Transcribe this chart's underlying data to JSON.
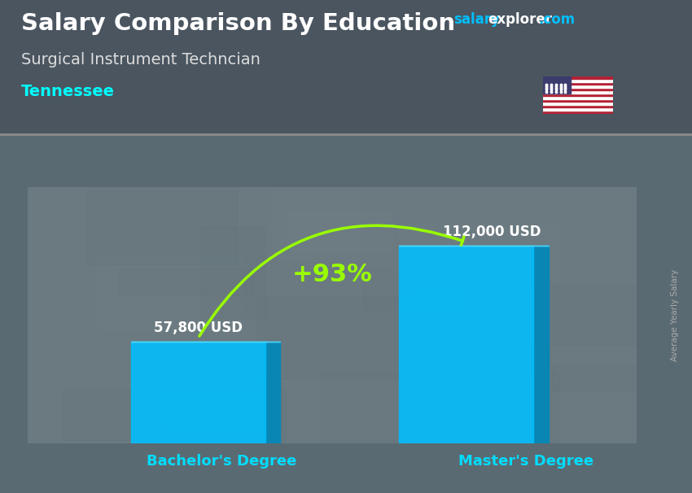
{
  "title": "Salary Comparison By Education",
  "subtitle": "Surgical Instrument Techncian",
  "location": "Tennessee",
  "ylabel": "Average Yearly Salary",
  "categories": [
    "Bachelor's Degree",
    "Master's Degree"
  ],
  "values": [
    57800,
    112000
  ],
  "value_labels": [
    "57,800 USD",
    "112,000 USD"
  ],
  "bar_color": "#00BFFF",
  "bar_dark_color": "#0088BB",
  "bar_top_color": "#55DDFF",
  "pct_label": "+93%",
  "pct_color": "#99FF00",
  "title_color": "#FFFFFF",
  "subtitle_color": "#DDDDDD",
  "location_color": "#00FFFF",
  "value_label_color": "#FFFFFF",
  "xlabel_color": "#00DDFF",
  "arrow_color": "#99FF00",
  "salary_color1": "#00BFFF",
  "salary_color2": "#FFFFFF",
  "ylabel_color": "#AAAAAA",
  "bar_width": 0.22,
  "bar_positions": [
    0.28,
    0.72
  ],
  "ylim_max": 145000,
  "fig_width": 8.5,
  "fig_height": 6.06,
  "bg_color": "#5a6a72"
}
